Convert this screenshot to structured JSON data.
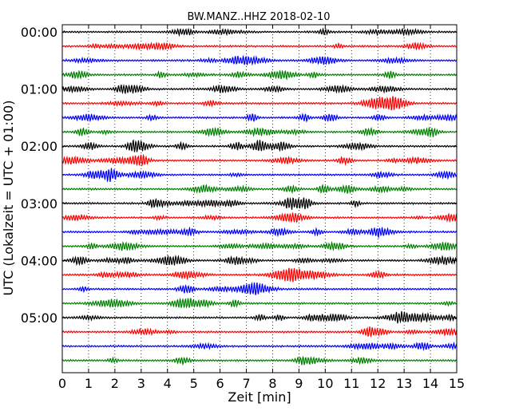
{
  "chart_data": {
    "type": "line",
    "title": "BW.MANZ..HHZ 2018-02-10",
    "xlabel": "Zeit  [min]",
    "ylabel": "UTC (Lokalzeit = UTC + 01:00)",
    "xlim": [
      0,
      15
    ],
    "xticks": [
      "0",
      "1",
      "2",
      "3",
      "4",
      "5",
      "6",
      "7",
      "8",
      "9",
      "10",
      "11",
      "12",
      "13",
      "14",
      "15"
    ],
    "yticks": [
      {
        "label": "00:00",
        "row": 0
      },
      {
        "label": "01:00",
        "row": 4
      },
      {
        "label": "02:00",
        "row": 8
      },
      {
        "label": "03:00",
        "row": 12
      },
      {
        "label": "04:00",
        "row": 16
      },
      {
        "label": "05:00",
        "row": 20
      }
    ],
    "trace_count": 24,
    "minutes_per_trace": 15,
    "trace_colors": [
      "#000000",
      "#ff0000",
      "#0000ff",
      "#008000"
    ],
    "grid": "vertical-dotted"
  }
}
